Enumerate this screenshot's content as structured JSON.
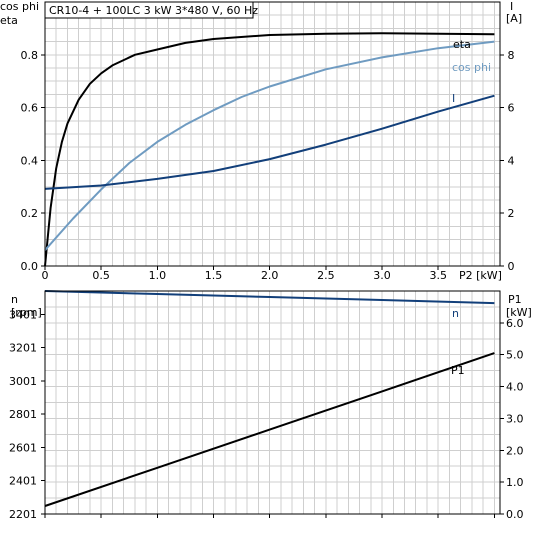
{
  "title": "CR10-4 + 100LC   3 kW   3*480 V, 60 Hz",
  "colors": {
    "eta": "#000000",
    "cos_phi": "#6f9bc1",
    "I": "#123f7a",
    "n": "#123f7a",
    "P1": "#000000",
    "grid": "#cfcfcf"
  },
  "chart_data": [
    {
      "type": "line",
      "title": "CR10-4 + 100LC   3 kW   3*480 V, 60 Hz",
      "xlabel": "P2 [kW]",
      "ylabel_left": [
        "cos phi",
        "eta"
      ],
      "ylabel_right": [
        "I",
        "[A]"
      ],
      "xlim": [
        0,
        4.05
      ],
      "ylim_left": [
        0,
        1.0
      ],
      "ylim_right": [
        0,
        10
      ],
      "x_ticks": [
        "0",
        "0.5",
        "1.0",
        "1.5",
        "2.0",
        "2.5",
        "3.0",
        "3.5"
      ],
      "y_ticks_left": [
        "0.0",
        "0.2",
        "0.4",
        "0.6",
        "0.8"
      ],
      "y_ticks_right": [
        "0",
        "2",
        "4",
        "6",
        "8"
      ],
      "grid": true,
      "series": [
        {
          "name": "eta",
          "axis": "left",
          "x": [
            0,
            0.05,
            0.1,
            0.15,
            0.2,
            0.3,
            0.4,
            0.5,
            0.6,
            0.8,
            1.0,
            1.25,
            1.5,
            2.0,
            2.5,
            3.0,
            3.5,
            4.0
          ],
          "y": [
            0,
            0.22,
            0.37,
            0.47,
            0.54,
            0.63,
            0.69,
            0.73,
            0.76,
            0.8,
            0.82,
            0.845,
            0.86,
            0.875,
            0.88,
            0.882,
            0.88,
            0.878
          ]
        },
        {
          "name": "cos phi",
          "axis": "left",
          "x": [
            0,
            0.25,
            0.5,
            0.75,
            1.0,
            1.25,
            1.5,
            1.75,
            2.0,
            2.5,
            3.0,
            3.5,
            4.0
          ],
          "y": [
            0.06,
            0.18,
            0.29,
            0.39,
            0.47,
            0.535,
            0.59,
            0.64,
            0.68,
            0.745,
            0.79,
            0.825,
            0.85
          ]
        },
        {
          "name": "I",
          "axis": "right",
          "x": [
            0,
            0.5,
            1.0,
            1.5,
            2.0,
            2.5,
            3.0,
            3.5,
            4.0
          ],
          "y": [
            2.92,
            3.05,
            3.3,
            3.6,
            4.05,
            4.6,
            5.2,
            5.85,
            6.45
          ]
        }
      ]
    },
    {
      "type": "line",
      "xlim": [
        0,
        4.05
      ],
      "ylabel_left": [
        "n",
        "[rpm]"
      ],
      "ylabel_right": [
        "P1",
        "[kW]"
      ],
      "ylim_left": [
        2201,
        3541
      ],
      "ylim_right": [
        0,
        7.0
      ],
      "y_ticks_left": [
        "3401",
        "3201",
        "3001",
        "2801",
        "2601",
        "2401",
        "2201"
      ],
      "y_ticks_right": [
        "6.0",
        "5.0",
        "4.0",
        "3.0",
        "2.0",
        "1.0",
        "0.0"
      ],
      "grid": true,
      "series": [
        {
          "name": "n",
          "axis": "left",
          "x": [
            0,
            1,
            2,
            3,
            4
          ],
          "y": [
            3541,
            3523,
            3505,
            3487,
            3468
          ]
        },
        {
          "name": "P1",
          "axis": "right",
          "x": [
            0,
            1,
            2,
            3,
            4
          ],
          "y": [
            0.25,
            1.45,
            2.65,
            3.85,
            5.05
          ]
        }
      ]
    }
  ]
}
